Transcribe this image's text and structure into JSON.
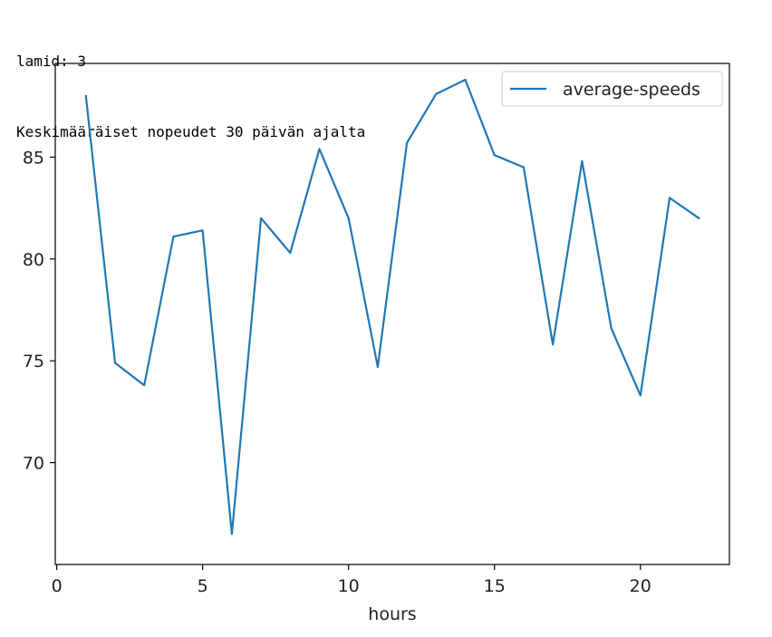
{
  "console": {
    "lines": [
      "lamid: 3",
      "Keskimääräiset nopeudet 30 päivän ajalta"
    ]
  },
  "chart_data": {
    "type": "line",
    "title": "",
    "xlabel": "hours",
    "ylabel": "",
    "xlim": [
      -0.05,
      23.05
    ],
    "ylim": [
      65.0,
      89.6
    ],
    "xticks": [
      0,
      5,
      10,
      15,
      20
    ],
    "yticks": [
      70,
      75,
      80,
      85
    ],
    "grid": false,
    "legend_position": "top-right",
    "colors": {
      "line": "#1f77b4",
      "axes": "#000000",
      "legend_border": "#cccccc"
    },
    "series": [
      {
        "name": "average-speeds",
        "x": [
          1,
          2,
          3,
          4,
          5,
          6,
          7,
          8,
          9,
          10,
          11,
          12,
          13,
          14,
          15,
          16,
          17,
          18,
          19,
          20,
          21,
          22
        ],
        "values": [
          88.0,
          74.9,
          73.8,
          81.1,
          81.4,
          66.5,
          82.0,
          80.3,
          85.4,
          82.0,
          74.7,
          85.7,
          88.1,
          88.8,
          85.1,
          84.5,
          75.8,
          84.8,
          76.6,
          73.3,
          83.0,
          82.0
        ]
      }
    ]
  }
}
